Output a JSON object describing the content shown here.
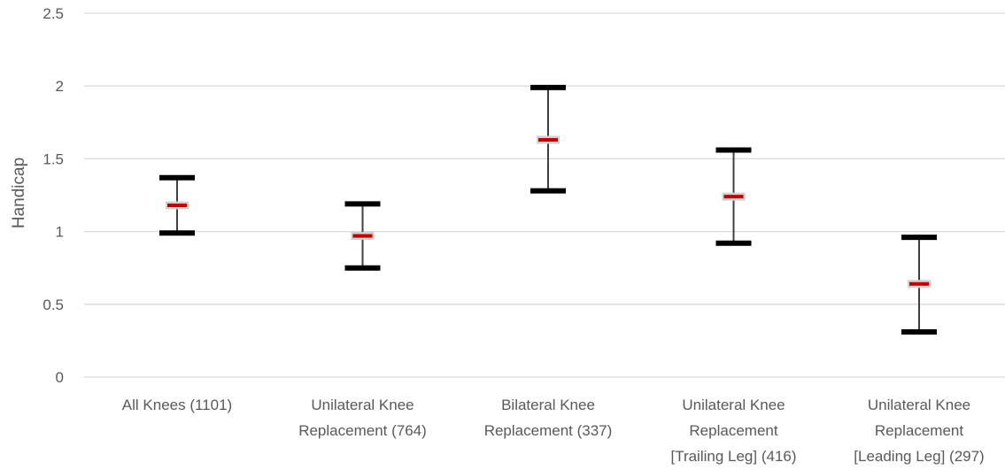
{
  "chart_data": {
    "type": "errorbar",
    "title": "",
    "ylabel": "Handicap",
    "xlabel": "",
    "ylim": [
      0,
      2.5
    ],
    "yticks": [
      "0",
      "0.5",
      "1",
      "1.5",
      "2",
      "2.5"
    ],
    "grid": true,
    "categories": [
      {
        "lines": [
          "All Knees (1101)"
        ],
        "mean": 1.18,
        "low": 0.99,
        "high": 1.37
      },
      {
        "lines": [
          "Unilateral Knee",
          "Replacement (764)"
        ],
        "mean": 0.97,
        "low": 0.75,
        "high": 1.19
      },
      {
        "lines": [
          "Bilateral Knee",
          "Replacement (337)"
        ],
        "mean": 1.63,
        "low": 1.28,
        "high": 1.99
      },
      {
        "lines": [
          "Unilateral Knee",
          "Replacement",
          "[Trailing Leg] (416)"
        ],
        "mean": 1.24,
        "low": 0.92,
        "high": 1.56
      },
      {
        "lines": [
          "Unilateral Knee",
          "Replacement",
          "[Leading Leg] (297)"
        ],
        "mean": 0.64,
        "low": 0.31,
        "high": 0.96
      }
    ],
    "colors": {
      "mean": "#c00000",
      "error_cap": "#000000",
      "whisker": "#404040",
      "grid": "#d9d9d9",
      "text": "#595959"
    }
  }
}
